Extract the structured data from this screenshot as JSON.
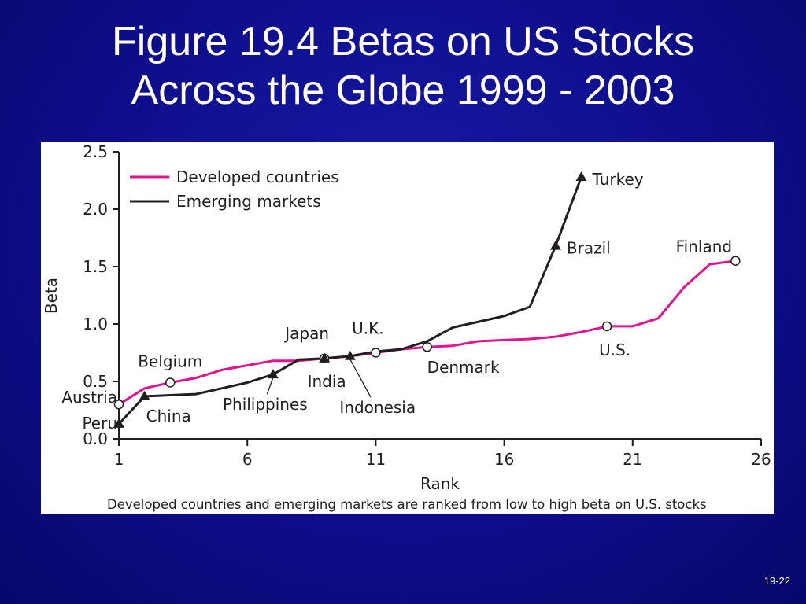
{
  "slide": {
    "title_line1": "Figure 19.4 Betas on US Stocks",
    "title_line2": "Across the Globe 1999 - 2003",
    "page_number": "19-22"
  },
  "chart_data": {
    "type": "line",
    "xlabel": "Rank",
    "ylabel": "Beta",
    "caption": "Developed countries and emerging markets are ranked from low to high beta on U.S. stocks",
    "xlim": [
      1,
      26
    ],
    "ylim": [
      0,
      2.5
    ],
    "x_ticks": [
      "1",
      "6",
      "11",
      "16",
      "21",
      "26"
    ],
    "y_ticks": [
      "0.0",
      "0.5",
      "1.0",
      "1.5",
      "2.0",
      "2.5"
    ],
    "legend_placement": "top-left",
    "grid": false,
    "series": [
      {
        "name": "Developed countries",
        "color": "#e0148c",
        "marker": "open-circle",
        "x": [
          1,
          2,
          3,
          4,
          5,
          6,
          7,
          8,
          9,
          10,
          11,
          12,
          13,
          14,
          15,
          16,
          17,
          18,
          19,
          20,
          21,
          22,
          23,
          24,
          25
        ],
        "y": [
          0.3,
          0.44,
          0.49,
          0.53,
          0.6,
          0.64,
          0.68,
          0.68,
          0.7,
          0.72,
          0.75,
          0.78,
          0.8,
          0.81,
          0.85,
          0.86,
          0.87,
          0.89,
          0.93,
          0.98,
          0.98,
          1.05,
          1.32,
          1.52,
          1.55
        ]
      },
      {
        "name": "Emerging markets",
        "color": "#231f20",
        "marker": "filled-triangle",
        "x": [
          1,
          2,
          3,
          4,
          5,
          6,
          7,
          8,
          9,
          10,
          11,
          12,
          13,
          14,
          15,
          16,
          17,
          18,
          19
        ],
        "y": [
          0.13,
          0.37,
          0.38,
          0.39,
          0.44,
          0.49,
          0.56,
          0.69,
          0.7,
          0.72,
          0.76,
          0.78,
          0.85,
          0.97,
          1.02,
          1.07,
          1.15,
          1.68,
          2.28
        ]
      }
    ],
    "annotations": [
      {
        "text": "Austria",
        "series": 0,
        "x": 1,
        "y": 0.3
      },
      {
        "text": "Peru",
        "series": 1,
        "x": 1,
        "y": 0.13
      },
      {
        "text": "Belgium",
        "series": 0,
        "x": 3,
        "y": 0.49
      },
      {
        "text": "China",
        "series": 1,
        "x": 2,
        "y": 0.37
      },
      {
        "text": "Philippines",
        "series": 1,
        "x": 7,
        "y": 0.56
      },
      {
        "text": "Japan",
        "series": 0,
        "x": 9,
        "y": 0.7
      },
      {
        "text": "India",
        "series": 1,
        "x": 9,
        "y": 0.7
      },
      {
        "text": "U.K.",
        "series": 0,
        "x": 11,
        "y": 0.75
      },
      {
        "text": "Indonesia",
        "series": 1,
        "x": 10,
        "y": 0.72
      },
      {
        "text": "Denmark",
        "series": 0,
        "x": 13,
        "y": 0.8
      },
      {
        "text": "U.S.",
        "series": 0,
        "x": 20,
        "y": 0.98
      },
      {
        "text": "Finland",
        "series": 0,
        "x": 25,
        "y": 1.55
      },
      {
        "text": "Brazil",
        "series": 1,
        "x": 18,
        "y": 1.68
      },
      {
        "text": "Turkey",
        "series": 1,
        "x": 19,
        "y": 2.28
      }
    ]
  }
}
